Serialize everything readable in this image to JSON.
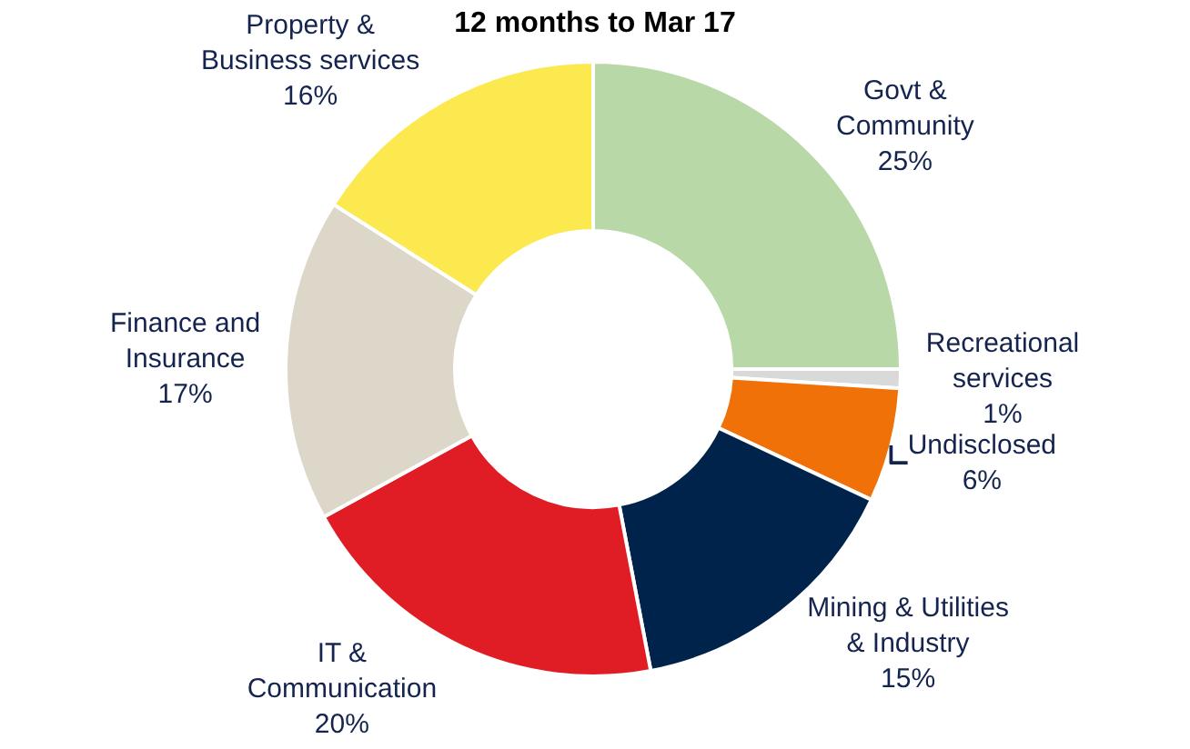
{
  "chart_data": {
    "type": "donut",
    "title": "12 months to Mar 17",
    "categories": [
      "Govt &\nCommunity",
      "Recreational\nservices",
      "Undisclosed",
      "Mining & Utilities\n& Industry",
      "IT &\nCommunication",
      "Finance and\nInsurance",
      "Property &\nBusiness services"
    ],
    "values": [
      25,
      1,
      6,
      15,
      20,
      17,
      16
    ],
    "value_labels": [
      "25%",
      "1%",
      "6%",
      "15%",
      "20%",
      "17%",
      "16%"
    ],
    "colors": [
      "#b8d8a8",
      "#d9d9d9",
      "#ef7108",
      "#00234b",
      "#e01d24",
      "#ddd7ca",
      "#fbe94f"
    ],
    "legend": false
  }
}
